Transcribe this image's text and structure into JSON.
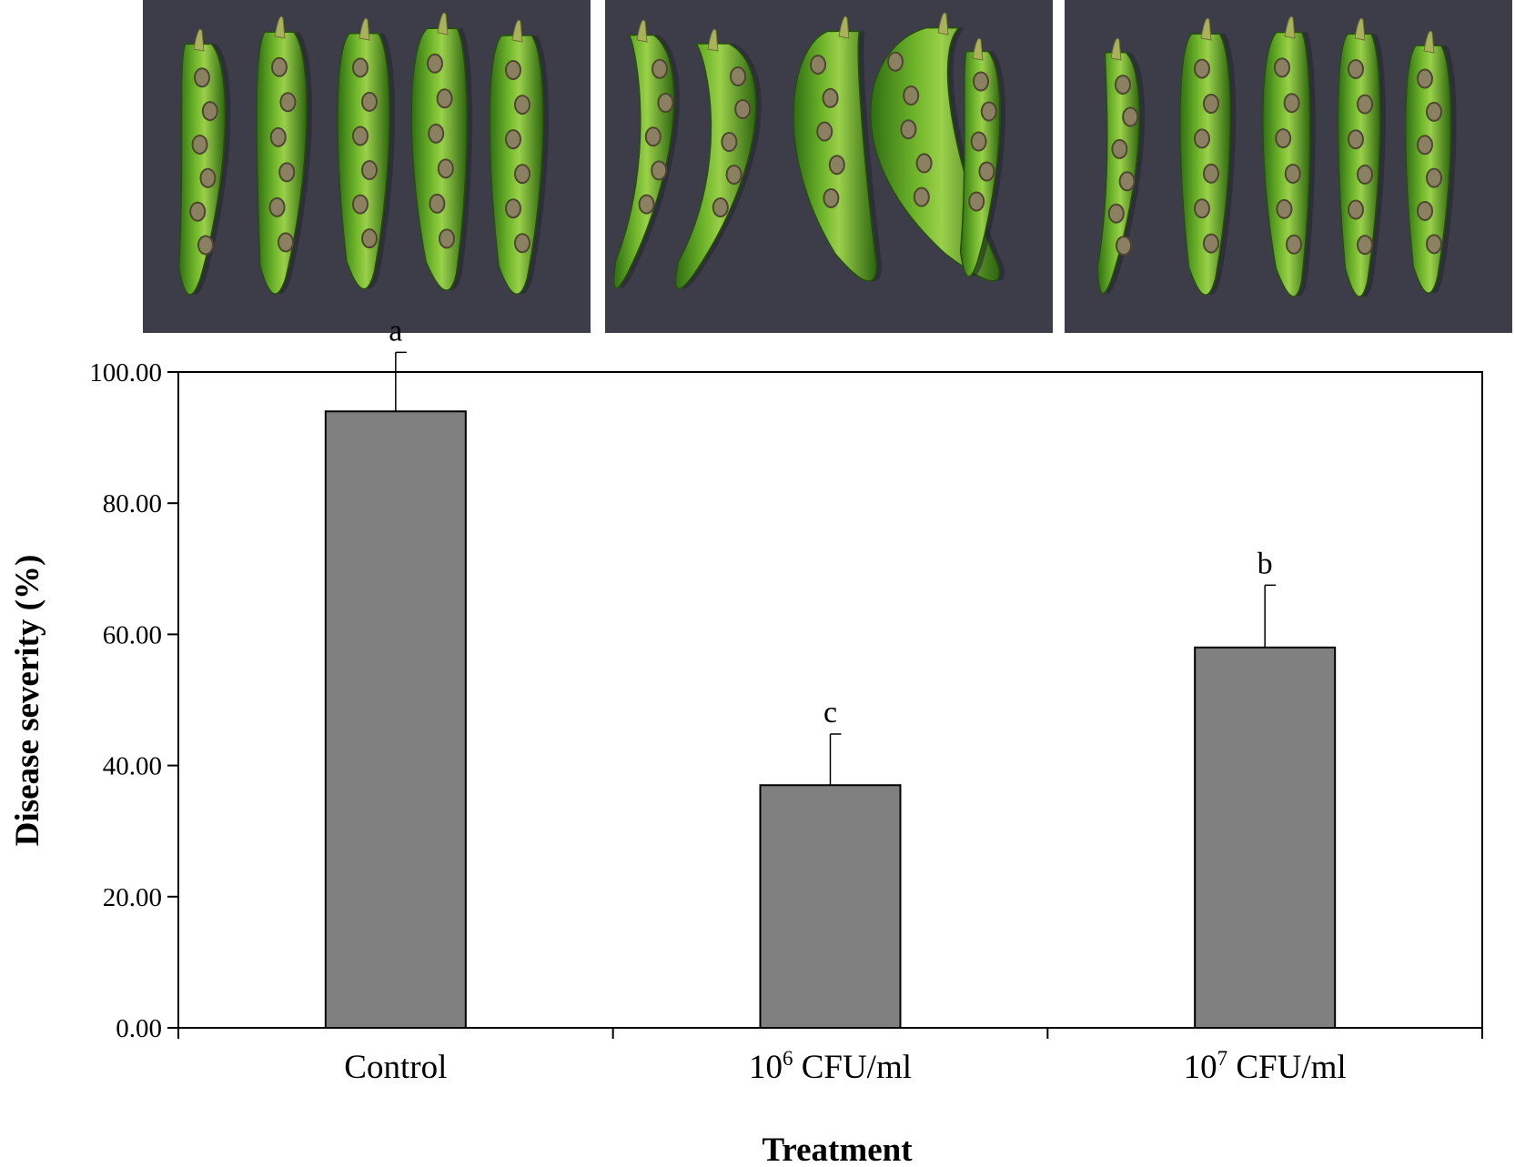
{
  "photos": [
    {
      "name": "control-peppers-photo"
    },
    {
      "name": "1e6-cfu-peppers-photo"
    },
    {
      "name": "1e7-cfu-peppers-photo"
    }
  ],
  "chart_data": {
    "type": "bar",
    "categories": [
      {
        "base": "Control",
        "exp": "",
        "suffix": ""
      },
      {
        "base": "10",
        "exp": "6",
        "suffix": " CFU/ml"
      },
      {
        "base": "10",
        "exp": "7",
        "suffix": " CFU/ml"
      }
    ],
    "values": [
      94.0,
      37.0,
      58.0
    ],
    "errors": [
      9.0,
      7.8,
      9.5
    ],
    "significance": [
      "a",
      "c",
      "b"
    ],
    "xlabel": "Treatment",
    "ylabel": "Disease severity (%)",
    "ylim": [
      0,
      100
    ],
    "yticks": [
      "0.00",
      "20.00",
      "40.00",
      "60.00",
      "80.00",
      "100.00"
    ],
    "bar_color": "#808080",
    "grid": false
  }
}
